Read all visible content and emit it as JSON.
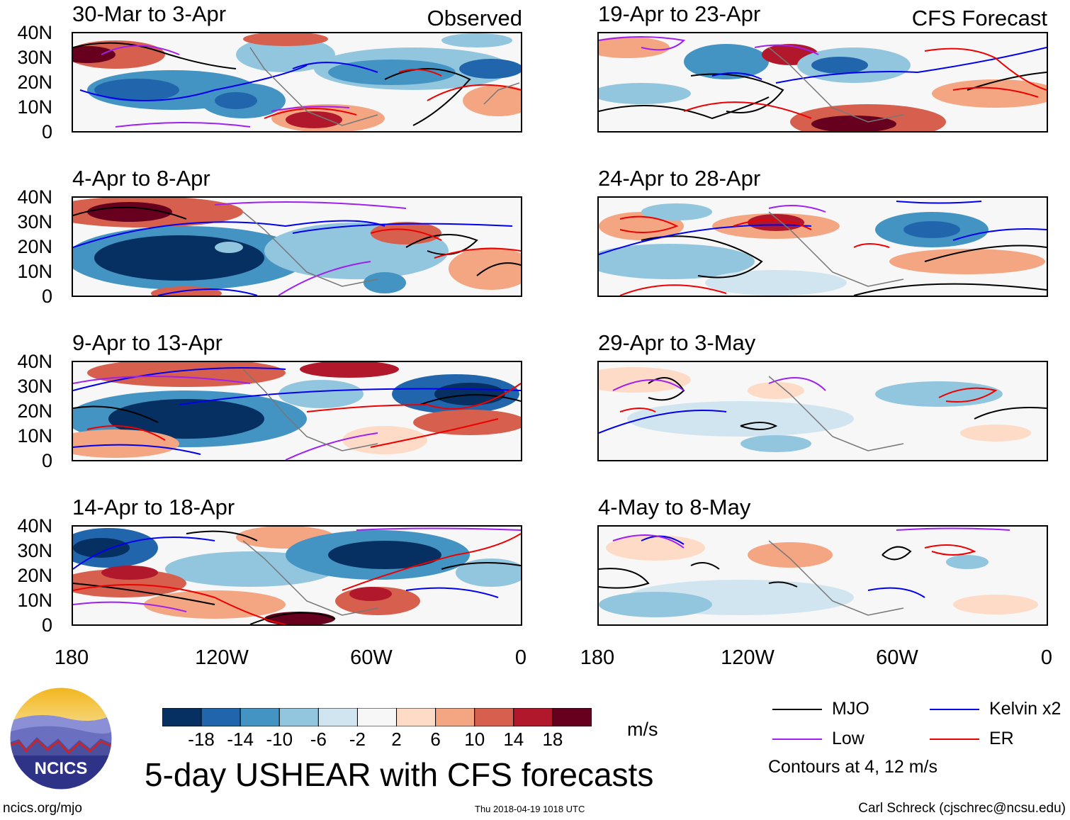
{
  "header": {
    "observed_label": "Observed",
    "forecast_label": "CFS Forecast"
  },
  "panels_observed": [
    {
      "title": "30-Mar to 3-Apr"
    },
    {
      "title": "4-Apr to 8-Apr"
    },
    {
      "title": "9-Apr to 13-Apr"
    },
    {
      "title": "14-Apr to 18-Apr"
    }
  ],
  "panels_forecast": [
    {
      "title": "19-Apr to 23-Apr"
    },
    {
      "title": "24-Apr to 28-Apr"
    },
    {
      "title": "29-Apr to 3-May"
    },
    {
      "title": "4-May to 8-May"
    }
  ],
  "lat_labels": [
    "40N",
    "30N",
    "20N",
    "10N",
    "0"
  ],
  "lon_labels": [
    "180",
    "120W",
    "60W",
    "0"
  ],
  "colorbar": {
    "ticks": [
      "-18",
      "-14",
      "-10",
      "-6",
      "-2",
      "2",
      "6",
      "10",
      "14",
      "18"
    ],
    "colors": [
      "#053061",
      "#2166ac",
      "#4393c3",
      "#92c5de",
      "#d1e5f0",
      "#f7f7f7",
      "#fddbc7",
      "#f4a582",
      "#d6604d",
      "#b2182b",
      "#67001f"
    ],
    "units": "m/s"
  },
  "legend": {
    "mjo": {
      "label": "MJO",
      "color": "#000000"
    },
    "kelvin": {
      "label": "Kelvin x2",
      "color": "#0000ee"
    },
    "low": {
      "label": "Low",
      "color": "#a020f0"
    },
    "er": {
      "label": "ER",
      "color": "#ee0000"
    },
    "contours_note": "Contours at 4, 12 m/s"
  },
  "footer": {
    "title": "5-day USHEAR with CFS forecasts",
    "url": "ncics.org/mjo",
    "timestamp": "Thu 2018-04-19 1018 UTC",
    "author": "Carl Schreck (cjschrec@ncsu.edu)",
    "logo_text": "NCICS"
  }
}
